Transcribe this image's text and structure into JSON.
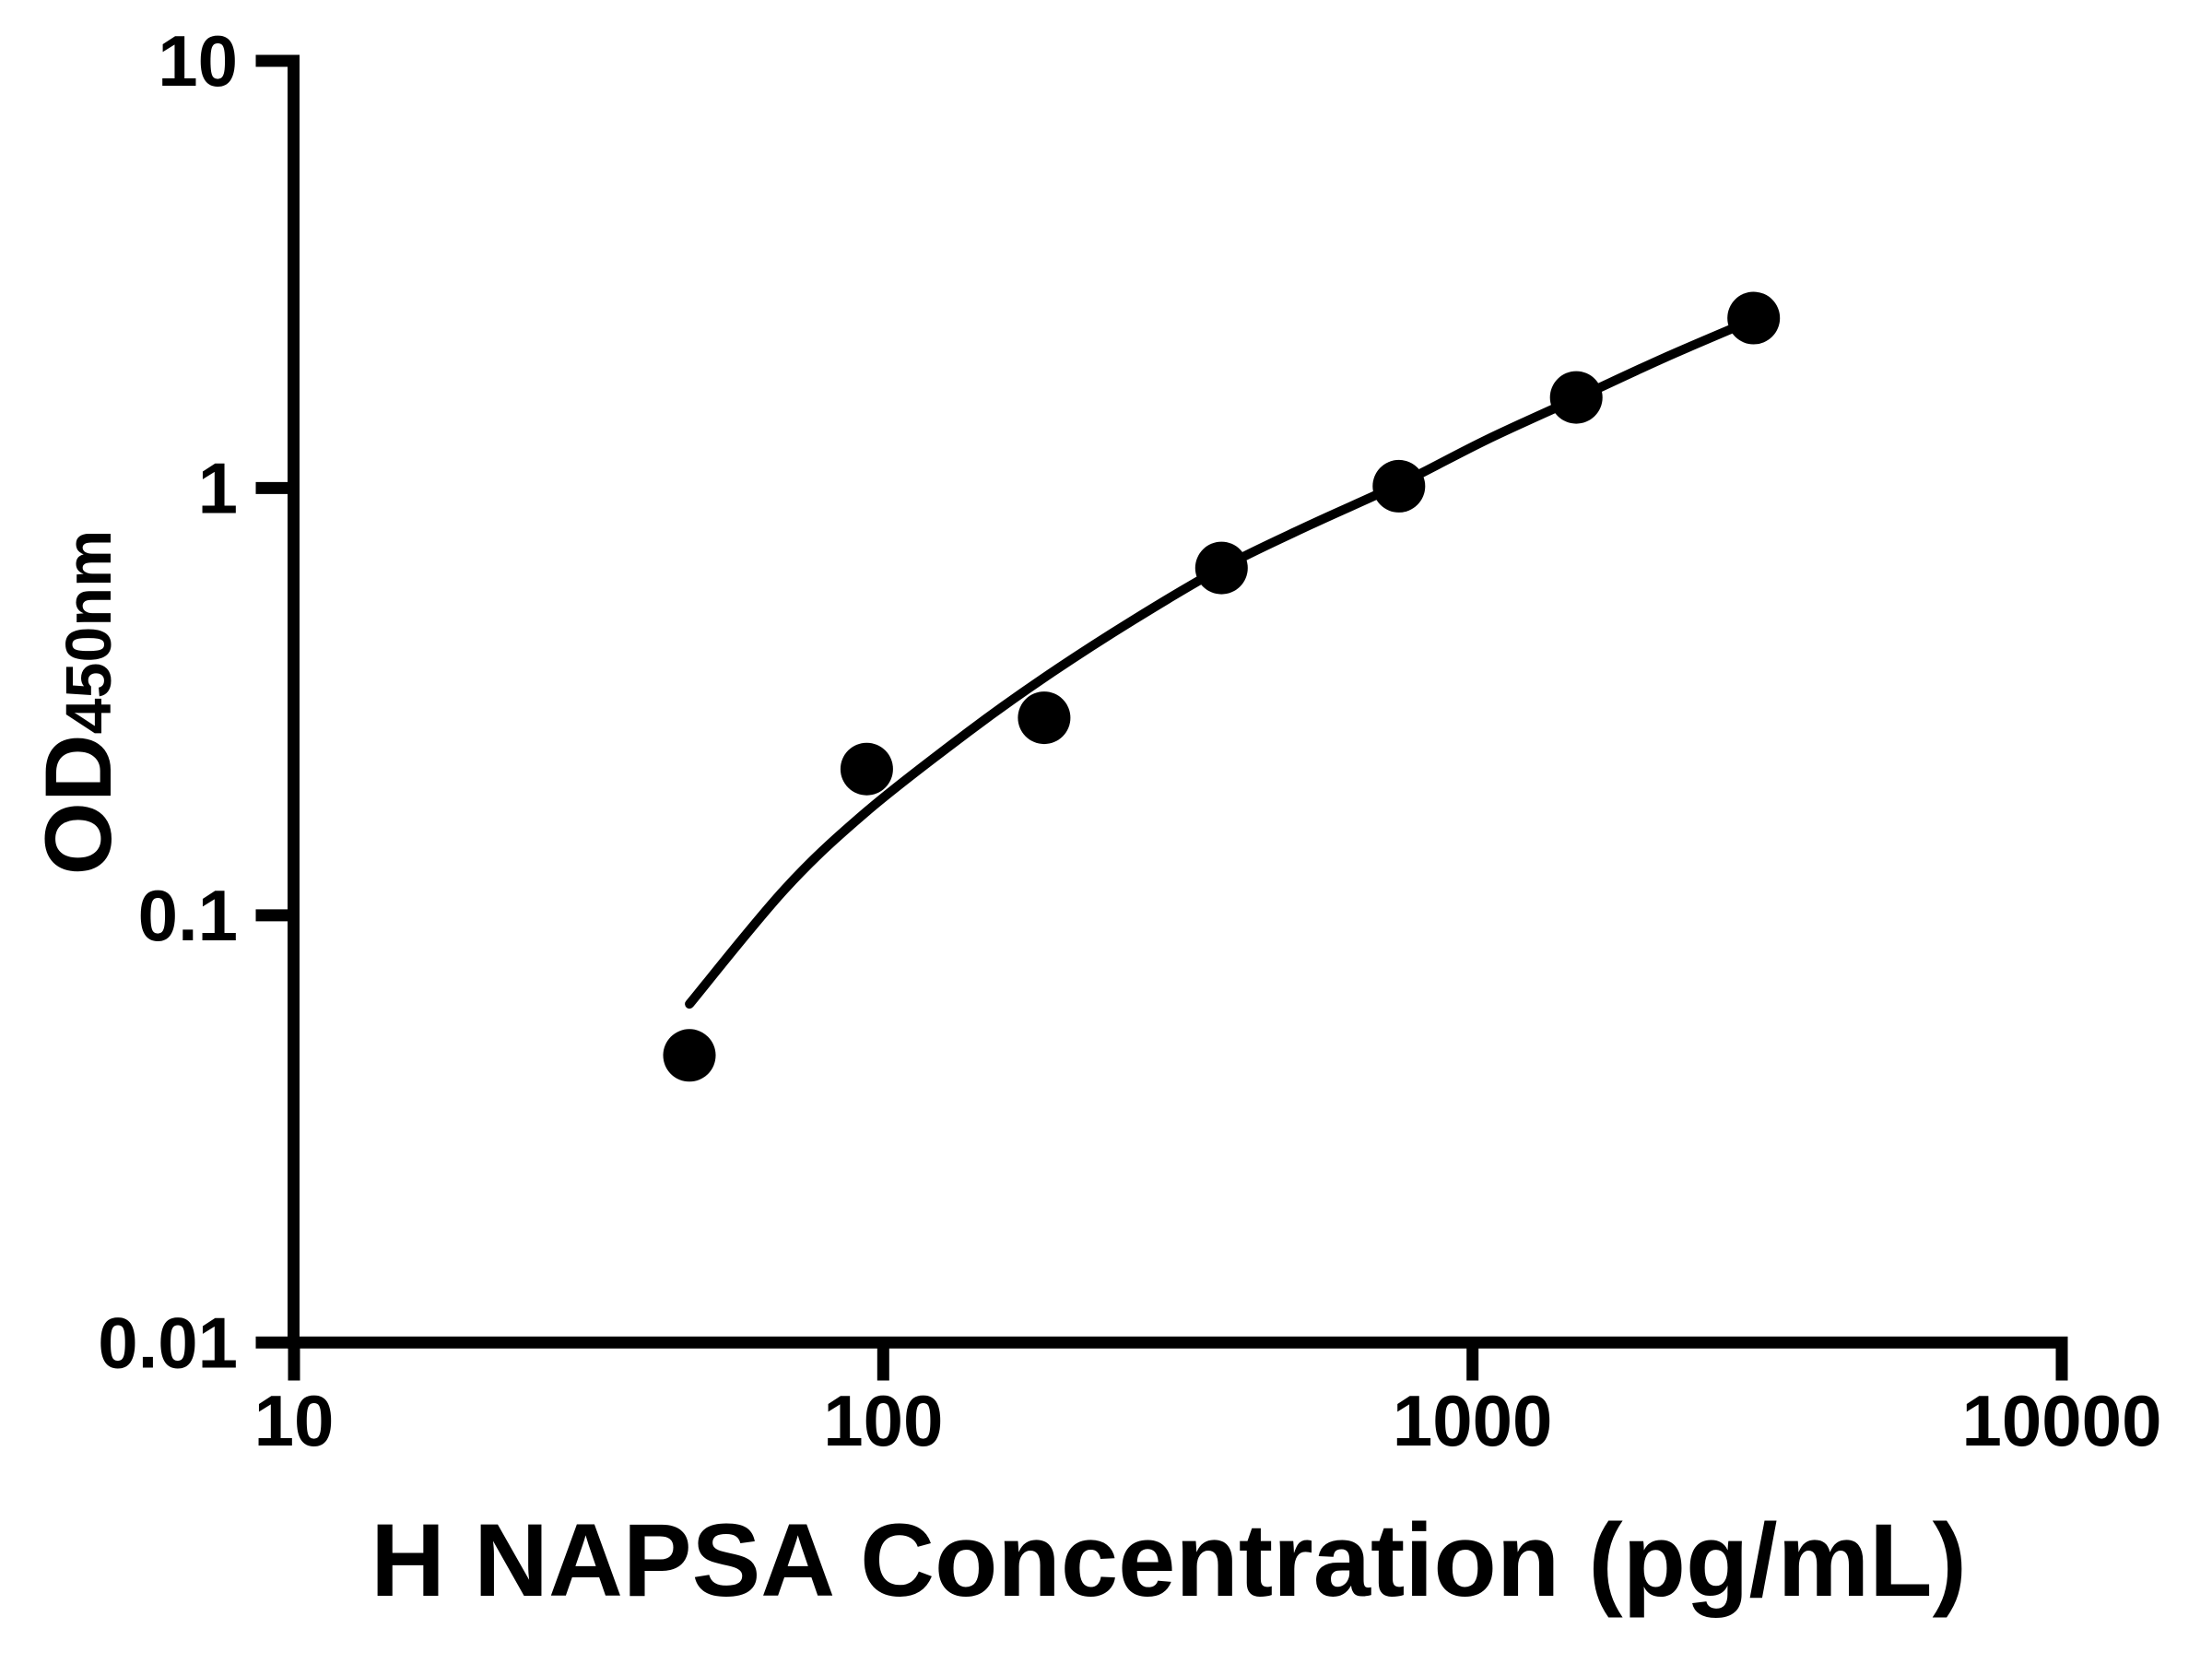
{
  "chart_data": {
    "type": "scatter",
    "title": "",
    "xlabel": "H NAPSA Concentration (pg/mL)",
    "ylabel": "OD450nm",
    "ylabel_main": "OD",
    "ylabel_sub": "450nm",
    "x_scale": "log",
    "y_scale": "log",
    "xlim": [
      10,
      10000
    ],
    "ylim": [
      0.01,
      10
    ],
    "grid": false,
    "legend": "none",
    "x_ticks": [
      {
        "value": 10,
        "label": "10"
      },
      {
        "value": 100,
        "label": "100"
      },
      {
        "value": 1000,
        "label": "1000"
      },
      {
        "value": 10000,
        "label": "10000"
      }
    ],
    "y_ticks": [
      {
        "value": 10,
        "label": "10"
      },
      {
        "value": 1,
        "label": "1"
      },
      {
        "value": 0.1,
        "label": "0.1"
      },
      {
        "value": 0.01,
        "label": "0.01"
      }
    ],
    "series": [
      {
        "name": "H NAPSA standard",
        "marker": "filled-circle",
        "color": "#000000",
        "points": [
          {
            "concentration_pg_ml": 46.88,
            "od450": 0.047
          },
          {
            "concentration_pg_ml": 93.75,
            "od450": 0.22
          },
          {
            "concentration_pg_ml": 187.5,
            "od450": 0.29
          },
          {
            "concentration_pg_ml": 375,
            "od450": 0.65
          },
          {
            "concentration_pg_ml": 750,
            "od450": 1.01
          },
          {
            "concentration_pg_ml": 1500,
            "od450": 1.63
          },
          {
            "concentration_pg_ml": 3000,
            "od450": 2.5
          }
        ]
      }
    ],
    "fit_curve": {
      "name": "fitted standard curve",
      "color": "#000000",
      "points": [
        [
          46.9,
          0.062
        ],
        [
          68,
          0.115
        ],
        [
          93.75,
          0.175
        ],
        [
          140,
          0.27
        ],
        [
          187.5,
          0.36
        ],
        [
          265,
          0.49
        ],
        [
          375,
          0.65
        ],
        [
          530,
          0.82
        ],
        [
          750,
          1.02
        ],
        [
          1060,
          1.3
        ],
        [
          1500,
          1.62
        ],
        [
          2120,
          2.02
        ],
        [
          3000,
          2.48
        ]
      ]
    }
  },
  "colors": {
    "background": "#ffffff",
    "foreground": "#000000"
  }
}
